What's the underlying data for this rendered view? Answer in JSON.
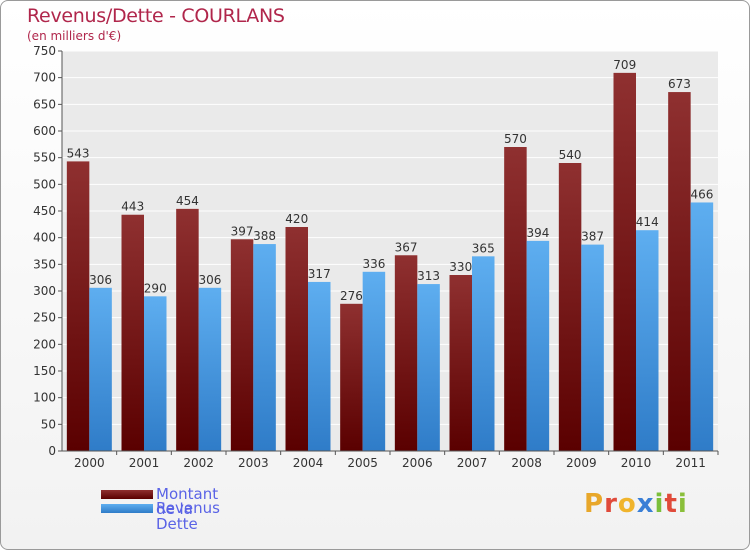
{
  "header": {
    "title": "Revenus/Dette - COURLANS",
    "subtitle": "(en milliers d'€)"
  },
  "legend": {
    "debt_label": "Montant de la Dette",
    "revenue_label": "Revenus"
  },
  "logo": {
    "text": "Proxiti"
  },
  "colors": {
    "debt": "#7a1515",
    "revenue": "#4d9ee6",
    "title": "#b0264b"
  },
  "chart_data": {
    "type": "bar",
    "title": "Revenus/Dette - COURLANS",
    "subtitle": "(en milliers d'€)",
    "categories": [
      "2000",
      "2001",
      "2002",
      "2003",
      "2004",
      "2005",
      "2006",
      "2007",
      "2008",
      "2009",
      "2010",
      "2011"
    ],
    "series": [
      {
        "name": "Montant de la Dette",
        "values": [
          543,
          443,
          454,
          397,
          420,
          276,
          367,
          330,
          570,
          540,
          709,
          673
        ]
      },
      {
        "name": "Revenus",
        "values": [
          306,
          290,
          306,
          388,
          317,
          336,
          313,
          365,
          394,
          387,
          414,
          466
        ]
      }
    ],
    "ylim": [
      0,
      750
    ],
    "yticks": [
      0,
      50,
      100,
      150,
      200,
      250,
      300,
      350,
      400,
      450,
      500,
      550,
      600,
      650,
      700,
      750
    ],
    "grid": true,
    "legend_position": "bottom-left"
  }
}
